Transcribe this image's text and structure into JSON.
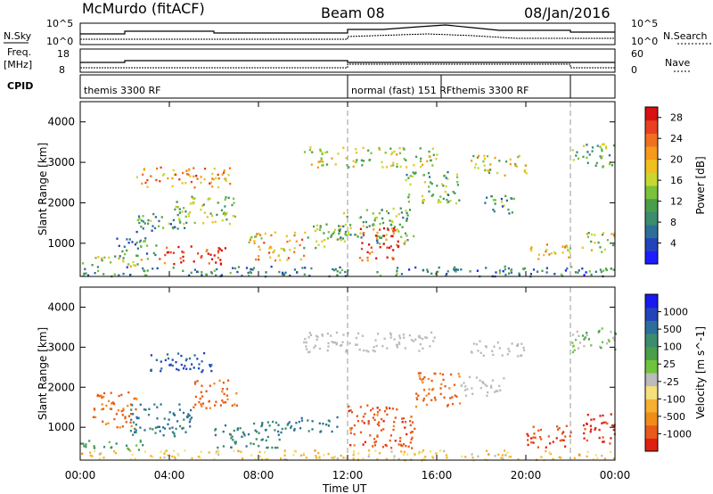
{
  "header": {
    "station": "McMurdo (fitACF)",
    "beam": "Beam 08",
    "date": "08/Jan/2016"
  },
  "panel_labels": {
    "nsky": "N.Sky",
    "nsearch": "N.Search",
    "freq_line1": "Freq.",
    "freq_line2": "[MHz]",
    "nave": "Nave",
    "cpid": "CPID",
    "nsky_ticks": [
      "10^5",
      "10^0"
    ],
    "nsearch_ticks": [
      "10^5",
      "10^0"
    ],
    "freq_ticks": [
      "18",
      "8"
    ],
    "nave_ticks": [
      "60",
      "0"
    ]
  },
  "cpid_segments": [
    {
      "label": "themis 3300 RF",
      "start_h": 0,
      "end_h": 12
    },
    {
      "label": "normal (fast) 151 RF",
      "start_h": 12,
      "end_h": 16.2
    },
    {
      "label": "themis 3300 RF",
      "start_h": 16.2,
      "end_h": 22
    }
  ],
  "colors": {
    "power_scale": [
      "#1c1cff",
      "#2244bb",
      "#2e6f99",
      "#3c8c6e",
      "#4a9e4a",
      "#7ac23c",
      "#c8d830",
      "#f0c020",
      "#f59a1a",
      "#f07020",
      "#e84020",
      "#d81010"
    ],
    "velocity_scale": [
      "#1a1aee",
      "#2244bb",
      "#2e6f99",
      "#3c8c6e",
      "#4a9e4a",
      "#6fc43c",
      "#bbbbbb",
      "#f5e07a",
      "#f5b030",
      "#f08c1a",
      "#e85a1a",
      "#e02010"
    ]
  },
  "chart_data": [
    {
      "type": "heatmap",
      "name": "power",
      "xlabel": "Time UT",
      "ylabel": "Slant Range [km]",
      "colorbar_label": "Power [dB]",
      "x_ticks": [
        "00:00",
        "04:00",
        "08:00",
        "12:00",
        "16:00",
        "20:00",
        "00:00"
      ],
      "xlim_hours": [
        0,
        24
      ],
      "ylim": [
        180,
        4500
      ],
      "y_ticks": [
        1000,
        2000,
        3000,
        4000
      ],
      "colorbar_ticks": [
        4,
        8,
        12,
        16,
        20,
        24,
        28
      ],
      "colorbar_range": [
        0,
        30
      ],
      "echo_regions": [
        {
          "t0": 0,
          "t1": 24,
          "r0": 200,
          "r1": 450,
          "v": 8
        },
        {
          "t0": 0,
          "t1": 3,
          "r0": 450,
          "r1": 700,
          "v": 16
        },
        {
          "t0": 3.5,
          "t1": 6.5,
          "r0": 500,
          "r1": 950,
          "v": 26
        },
        {
          "t0": 1.5,
          "t1": 3.5,
          "r0": 700,
          "r1": 1200,
          "v": 10
        },
        {
          "t0": 2.5,
          "t1": 5,
          "r0": 1300,
          "r1": 1800,
          "v": 10
        },
        {
          "t0": 2.5,
          "t1": 6.8,
          "r0": 2400,
          "r1": 2900,
          "v": 22
        },
        {
          "t0": 4.2,
          "t1": 7,
          "r0": 1500,
          "r1": 2200,
          "v": 14
        },
        {
          "t0": 7.5,
          "t1": 10,
          "r0": 600,
          "r1": 1300,
          "v": 20
        },
        {
          "t0": 10,
          "t1": 12,
          "r0": 900,
          "r1": 1500,
          "v": 14
        },
        {
          "t0": 10,
          "t1": 16,
          "r0": 2900,
          "r1": 3400,
          "v": 16
        },
        {
          "t0": 11.5,
          "t1": 15,
          "r0": 1000,
          "r1": 1900,
          "v": 12
        },
        {
          "t0": 12.5,
          "t1": 14.5,
          "r0": 600,
          "r1": 1400,
          "v": 26
        },
        {
          "t0": 14.5,
          "t1": 17,
          "r0": 2000,
          "r1": 2800,
          "v": 12
        },
        {
          "t0": 17.5,
          "t1": 20,
          "r0": 2700,
          "r1": 3200,
          "v": 16
        },
        {
          "t0": 18,
          "t1": 19.5,
          "r0": 1700,
          "r1": 2200,
          "v": 10
        },
        {
          "t0": 20,
          "t1": 22,
          "r0": 600,
          "r1": 1000,
          "v": 20
        },
        {
          "t0": 22,
          "t1": 24,
          "r0": 2900,
          "r1": 3500,
          "v": 12
        },
        {
          "t0": 22.5,
          "t1": 24,
          "r0": 800,
          "r1": 1300,
          "v": 16
        }
      ]
    },
    {
      "type": "heatmap",
      "name": "velocity",
      "xlabel": "Time UT",
      "ylabel": "Slant Range [km]",
      "colorbar_label": "Velocity [m s^-1]",
      "x_ticks": [
        "00:00",
        "04:00",
        "08:00",
        "12:00",
        "16:00",
        "20:00",
        "00:00"
      ],
      "xlim_hours": [
        0,
        24
      ],
      "ylim": [
        180,
        4500
      ],
      "y_ticks": [
        1000,
        2000,
        3000,
        4000
      ],
      "colorbar_ticks": [
        "1000",
        "500",
        "100",
        "25",
        "-25",
        "-100",
        "-500",
        "-1000"
      ],
      "echo_regions": [
        {
          "t0": 0,
          "t1": 24,
          "r0": 200,
          "r1": 450,
          "v": -60
        },
        {
          "t0": 0,
          "t1": 3,
          "r0": 450,
          "r1": 700,
          "v": 80
        },
        {
          "t0": 2,
          "t1": 5,
          "r0": 800,
          "r1": 1600,
          "v": 300
        },
        {
          "t0": 0.5,
          "t1": 2.5,
          "r0": 1000,
          "r1": 1900,
          "v": -300
        },
        {
          "t0": 3,
          "t1": 6,
          "r0": 2400,
          "r1": 2900,
          "v": 600
        },
        {
          "t0": 5,
          "t1": 7,
          "r0": 1500,
          "r1": 2200,
          "v": -300
        },
        {
          "t0": 6,
          "t1": 9,
          "r0": 500,
          "r1": 1200,
          "v": 200
        },
        {
          "t0": 9,
          "t1": 11.5,
          "r0": 900,
          "r1": 1300,
          "v": 300
        },
        {
          "t0": 10,
          "t1": 16,
          "r0": 2900,
          "r1": 3400,
          "v": 0
        },
        {
          "t0": 12,
          "t1": 15,
          "r0": 500,
          "r1": 1600,
          "v": -400
        },
        {
          "t0": 15,
          "t1": 17,
          "r0": 1500,
          "r1": 2400,
          "v": -300
        },
        {
          "t0": 17.5,
          "t1": 20,
          "r0": 2800,
          "r1": 3200,
          "v": 0
        },
        {
          "t0": 17,
          "t1": 19,
          "r0": 1800,
          "r1": 2300,
          "v": 0
        },
        {
          "t0": 20,
          "t1": 22,
          "r0": 500,
          "r1": 1100,
          "v": -450
        },
        {
          "t0": 22.5,
          "t1": 24,
          "r0": 600,
          "r1": 1400,
          "v": -700
        },
        {
          "t0": 22,
          "t1": 24,
          "r0": 2900,
          "r1": 3500,
          "v": 40
        }
      ]
    }
  ]
}
